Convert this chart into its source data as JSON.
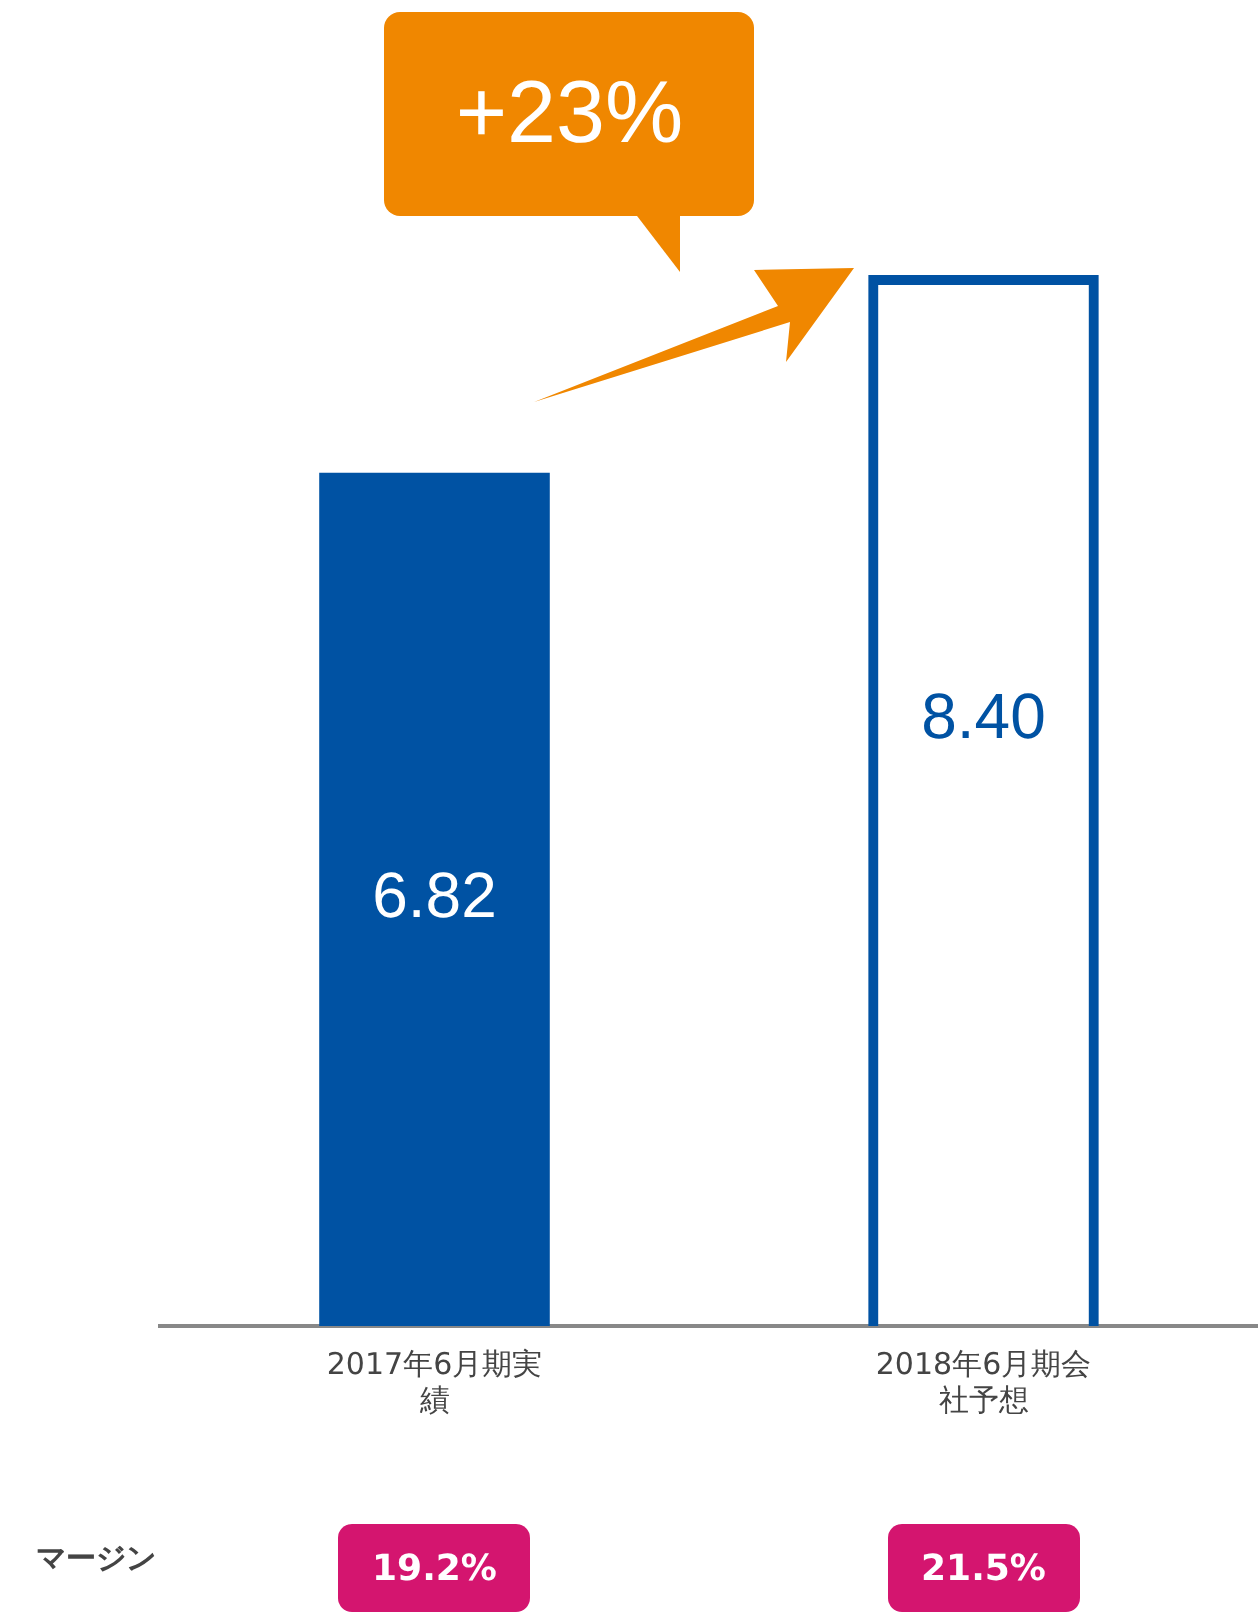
{
  "chart_data": {
    "type": "bar",
    "categories": [
      "2017年6月期実績",
      "2018年6月期会社予想"
    ],
    "values": [
      6.82,
      8.4
    ],
    "value_labels": [
      "6.82",
      "8.40"
    ],
    "colors": [
      "#0052a3",
      "#0052a3"
    ],
    "legend": false,
    "annotations": [
      "+23%",
      "マージン",
      "19.2%",
      "21.5%"
    ]
  }
}
